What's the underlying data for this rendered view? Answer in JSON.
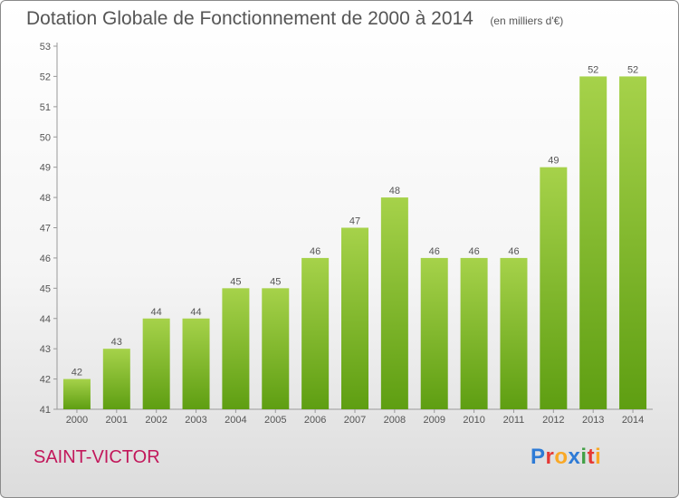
{
  "header": {
    "title": "Dotation Globale de Fonctionnement de 2000 à 2014",
    "unit": "(en milliers d'€)"
  },
  "footer": {
    "commune": "SAINT-VICTOR",
    "brand": "Proxiti",
    "brand_colors": [
      "#2e7bd6",
      "#e53935",
      "#f9a825",
      "#2e7bd6",
      "#43a047",
      "#e53935",
      "#f9a825"
    ]
  },
  "colors": {
    "bar_top": "#a6d24a",
    "bar_bottom": "#5e9e12",
    "commune_text": "#c2185b"
  },
  "chart_data": {
    "type": "bar",
    "categories": [
      "2000",
      "2001",
      "2002",
      "2003",
      "2004",
      "2005",
      "2006",
      "2007",
      "2008",
      "2009",
      "2010",
      "2011",
      "2012",
      "2013",
      "2014"
    ],
    "values": [
      42,
      43,
      44,
      44,
      45,
      45,
      46,
      47,
      48,
      46,
      46,
      46,
      49,
      52,
      52
    ],
    "ylim": [
      41,
      53
    ],
    "yticks": [
      41,
      42,
      43,
      44,
      45,
      46,
      47,
      48,
      49,
      50,
      51,
      52,
      53
    ],
    "data_labels": true,
    "grid": false,
    "legend": "none"
  }
}
